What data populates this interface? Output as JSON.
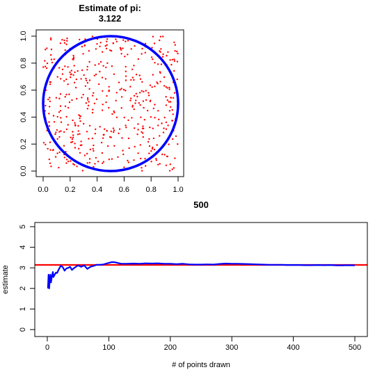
{
  "chart_data": [
    {
      "type": "scatter",
      "title": "Estimate of pi:",
      "subtitle": "3.122",
      "xlabel": "",
      "ylabel": "",
      "xlim": [
        0,
        1
      ],
      "ylim": [
        0,
        1
      ],
      "x_ticks": [
        "0.0",
        "0.2",
        "0.4",
        "0.6",
        "0.8",
        "1.0"
      ],
      "y_ticks": [
        "0.0",
        "0.2",
        "0.4",
        "0.6",
        "0.8",
        "1.0"
      ],
      "point_count": 500,
      "point_color": "#ff0000",
      "circle": {
        "center": [
          0.5,
          0.5
        ],
        "radius": 0.5,
        "color": "#0000ff"
      },
      "grid": false,
      "legend": "none"
    },
    {
      "type": "line",
      "title": "500",
      "xlabel": "# of points drawn",
      "ylabel": "estimate",
      "xlim": [
        0,
        500
      ],
      "ylim": [
        0,
        5
      ],
      "x_ticks": [
        "0",
        "100",
        "200",
        "300",
        "400",
        "500"
      ],
      "y_ticks": [
        "0",
        "1",
        "2",
        "3",
        "4",
        "5"
      ],
      "series": [
        {
          "color": "#0000ff",
          "x": [
            1,
            2,
            3,
            4,
            5,
            6,
            7,
            8,
            9,
            10,
            12,
            14,
            16,
            18,
            20,
            22,
            25,
            28,
            31,
            34,
            37,
            40,
            43,
            46,
            50,
            55,
            60,
            65,
            70,
            75,
            80,
            85,
            90,
            95,
            100,
            105,
            110,
            120,
            130,
            140,
            150,
            160,
            170,
            180,
            190,
            200,
            210,
            220,
            230,
            240,
            250,
            260,
            270,
            280,
            290,
            300,
            310,
            320,
            330,
            340,
            350,
            360,
            370,
            380,
            390,
            400,
            410,
            420,
            430,
            440,
            450,
            460,
            470,
            480,
            490,
            500
          ],
          "y": [
            2.0,
            2.67,
            2.0,
            2.4,
            2.67,
            2.29,
            2.5,
            2.67,
            2.8,
            2.55,
            2.67,
            2.77,
            2.75,
            2.89,
            3.0,
            3.1,
            3.04,
            2.86,
            2.97,
            3.0,
            3.05,
            2.9,
            2.98,
            3.04,
            3.12,
            3.05,
            3.12,
            2.95,
            3.05,
            3.09,
            3.15,
            3.15,
            3.16,
            3.2,
            3.24,
            3.28,
            3.27,
            3.2,
            3.2,
            3.21,
            3.2,
            3.22,
            3.21,
            3.22,
            3.2,
            3.2,
            3.18,
            3.2,
            3.17,
            3.16,
            3.16,
            3.17,
            3.16,
            3.19,
            3.21,
            3.2,
            3.2,
            3.19,
            3.18,
            3.17,
            3.16,
            3.15,
            3.15,
            3.15,
            3.14,
            3.14,
            3.14,
            3.13,
            3.13,
            3.14,
            3.13,
            3.14,
            3.12,
            3.12,
            3.13,
            3.122
          ]
        }
      ],
      "reference_line": {
        "y": 3.14159,
        "color": "#ff0000"
      },
      "grid": false,
      "legend": "none"
    }
  ]
}
